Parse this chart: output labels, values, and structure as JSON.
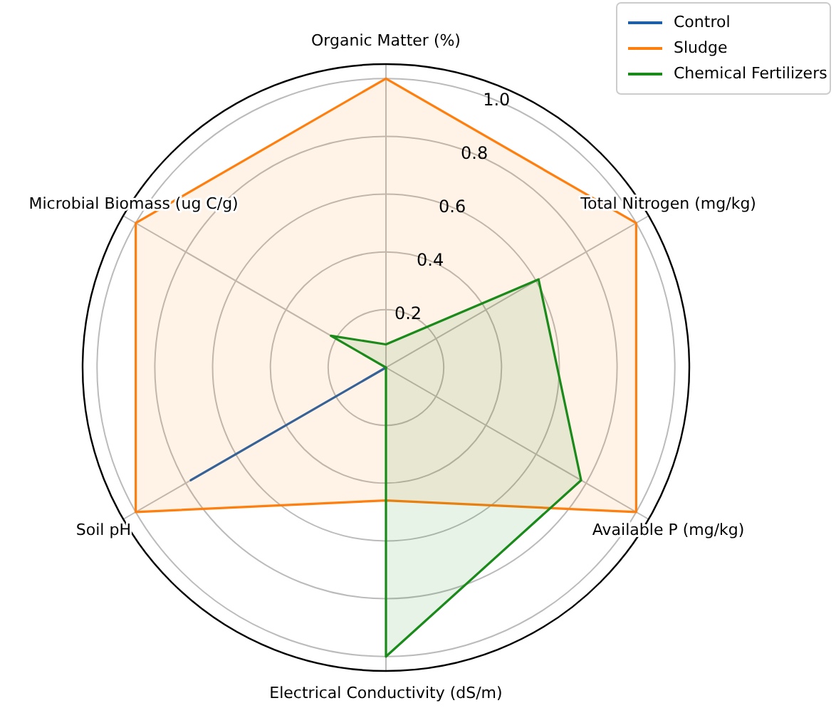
{
  "chart_data": {
    "type": "radar",
    "categories": [
      "Organic Matter (%)",
      "Total Nitrogen (mg/kg)",
      "Available P (mg/kg)",
      "Electrical Conductivity (dS/m)",
      "Soil pH",
      "Microbial Biomass (ug C/g)"
    ],
    "series": [
      {
        "name": "Control",
        "color": "#1f5fa8",
        "values": [
          0,
          0,
          0,
          0,
          0.78,
          0
        ]
      },
      {
        "name": "Sludge",
        "color": "#ff7f0e",
        "values": [
          1.0,
          1.0,
          1.0,
          0.46,
          1.0,
          1.0
        ]
      },
      {
        "name": "Chemical Fertilizers",
        "color": "#1a8a1a",
        "values": [
          0.08,
          0.61,
          0.78,
          1.0,
          0,
          0.22
        ]
      }
    ],
    "ylim": [
      0,
      1.05
    ],
    "yticks": [
      0.2,
      0.4,
      0.6,
      0.8,
      {
        "value": 1,
        "label": "1.0"
      }
    ],
    "grid": true,
    "legend": "top right"
  }
}
